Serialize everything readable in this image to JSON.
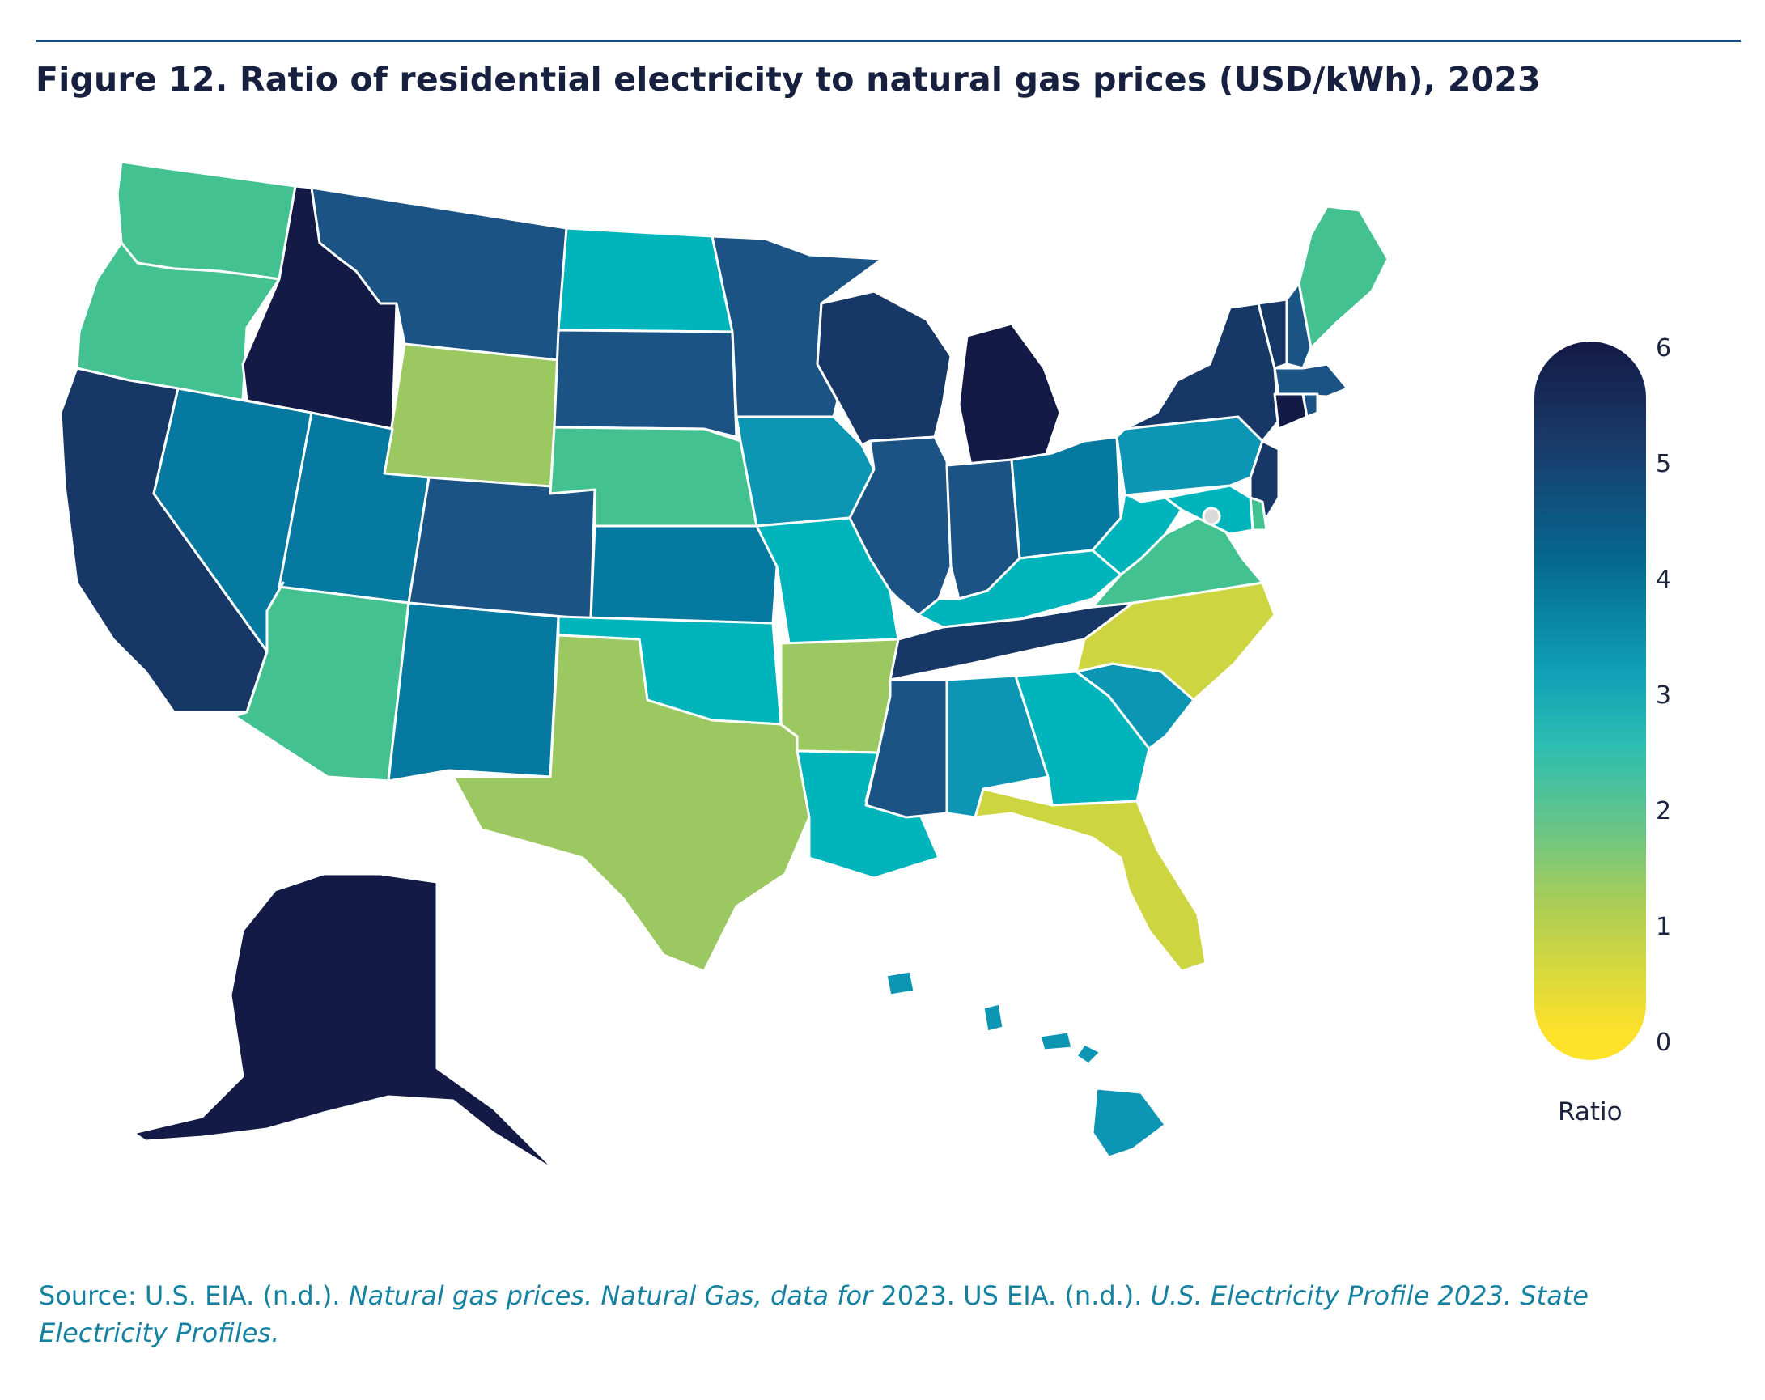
{
  "title": "Figure 12. Ratio of residential electricity to natural gas prices (USD/kWh), 2023",
  "legend": {
    "label": "Ratio",
    "ticks": [
      "6",
      "5",
      "4",
      "3",
      "2",
      "1",
      "0"
    ],
    "range": [
      0,
      6
    ],
    "gradient_colors": [
      "#131a45",
      "#05678e",
      "#2cbdb2",
      "#a9cd57",
      "#ffe42a"
    ]
  },
  "source": {
    "prefix": "Source: U.S. EIA. (n.d.). ",
    "italic1": "Natural gas prices. Natural Gas, data for",
    "mid": " 2023. US EIA. (n.d.). ",
    "italic2": "U.S. Electricity Profile 2023. State Electricity Profiles."
  },
  "map_data": {
    "type": "choropleth",
    "region": "United States",
    "levels": {
      "5.5": "#131a45",
      "4.8": "#173867",
      "4.3": "#1b5484",
      "3.8": "#05799f",
      "3.3": "#0c96b3",
      "2.9": "#00b4bc",
      "2.2": "#44c191",
      "1.8": "#9cc861",
      "1.3": "#cdd641"
    },
    "states": {
      "WA": 2.2,
      "OR": 2.2,
      "CA": 4.8,
      "ID": 5.5,
      "NV": 3.8,
      "MT": 4.3,
      "WY": 1.8,
      "UT": 3.8,
      "AZ": 2.2,
      "CO": 4.3,
      "NM": 3.8,
      "ND": 2.9,
      "SD": 4.3,
      "NE": 2.2,
      "KS": 3.8,
      "OK": 2.9,
      "TX": 1.8,
      "MN": 4.3,
      "IA": 3.3,
      "MO": 2.9,
      "AR": 1.8,
      "LA": 2.9,
      "WI": 4.8,
      "IL": 4.3,
      "MI": 5.5,
      "IN": 4.3,
      "OH": 3.8,
      "KY": 2.9,
      "TN": 4.8,
      "MS": 4.3,
      "AL": 3.3,
      "GA": 2.9,
      "FL": 1.3,
      "SC": 3.3,
      "NC": 1.3,
      "VA": 2.2,
      "WV": 2.9,
      "PA": 3.3,
      "NY": 4.8,
      "VT": 4.8,
      "NH": 4.3,
      "ME": 2.2,
      "MA": 4.3,
      "CT": 5.5,
      "RI": 4.3,
      "NJ": 4.8,
      "DE": 2.2,
      "MD": 2.9,
      "DC": null,
      "AK": 5.5,
      "HI": 3.3
    }
  }
}
